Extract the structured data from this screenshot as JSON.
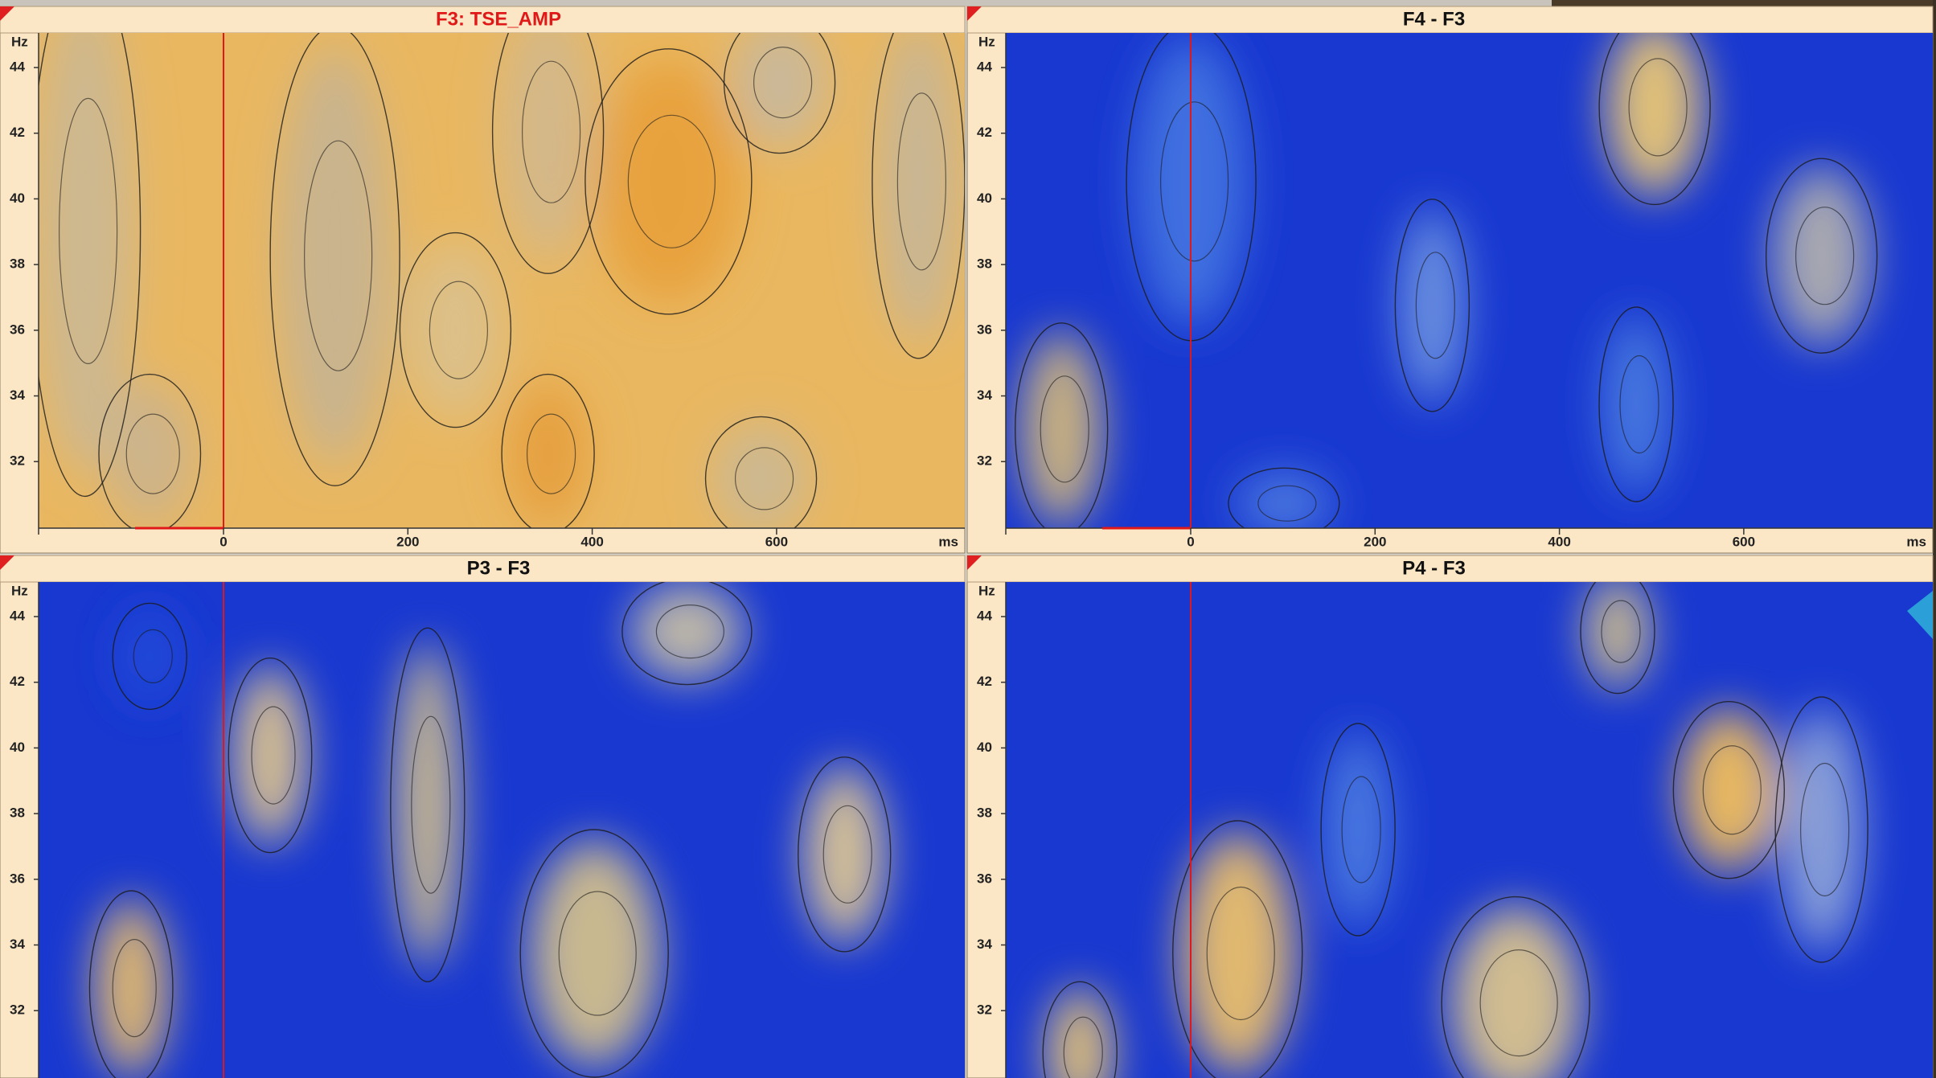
{
  "panels": [
    {
      "title": "F3: TSE_AMP",
      "y_unit": "Hz",
      "y_ticks": [
        "44",
        "42",
        "40",
        "38",
        "36",
        "34",
        "32"
      ],
      "x_ticks": [
        "0",
        "200",
        "400",
        "600"
      ],
      "x_unit": "ms"
    },
    {
      "title": "F4 - F3",
      "y_unit": "Hz",
      "y_ticks": [
        "44",
        "42",
        "40",
        "38",
        "36",
        "34",
        "32"
      ],
      "x_ticks": [
        "0",
        "200",
        "400",
        "600"
      ],
      "x_unit": "ms"
    },
    {
      "title": "P3 - F3",
      "y_unit": "Hz",
      "y_ticks": [
        "44",
        "42",
        "40",
        "38",
        "36",
        "34",
        "32"
      ]
    },
    {
      "title": "P4 - F3",
      "y_unit": "Hz",
      "y_ticks": [
        "44",
        "42",
        "40",
        "38",
        "36",
        "34",
        "32"
      ]
    }
  ]
}
